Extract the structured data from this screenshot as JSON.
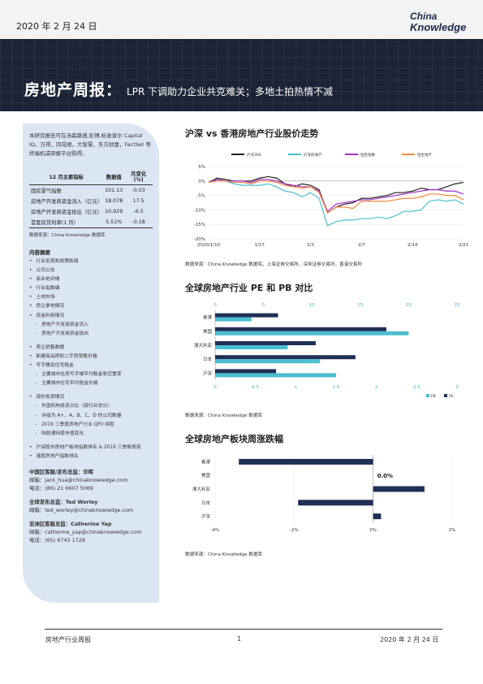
{
  "header": {
    "date": "2020 年 2 月 24 日",
    "logo_line1": "China",
    "logo_line2": "Knowledge",
    "title": "房地产周报：",
    "subtitle": "LPR 下调助力企业共克难关；多地土拍热情不减"
  },
  "sidebar": {
    "intro": "本研究报告可在汤森路透,彭博,标准普尔 Capital IQ，万得，同花顺，大智慧，东方财富，FactSet 等终端机或研报平台购得。",
    "table": {
      "headers": [
        "12 月主要指标",
        "数据值",
        "月变化(%)"
      ],
      "rows": [
        [
          "国房景气指数",
          "101.13",
          "-0.03"
        ],
        [
          "房地产开发商资金流入（亿元）",
          "18,078",
          "17.5"
        ],
        [
          "房地产开发商资金投出（亿元）",
          "10,929",
          "-6.5"
        ],
        [
          "首套房贷利率(1 月）",
          "5.51%",
          "-0.18"
        ]
      ]
    },
    "table_source": "数据来源：China Knowledge 数据库",
    "toc_title": "内容摘要",
    "toc": [
      {
        "t": "b",
        "x": "行业宏观和政策新闻"
      },
      {
        "t": "b",
        "x": "公司公告"
      },
      {
        "t": "b",
        "x": "商业地评情"
      },
      {
        "t": "b",
        "x": "行业指数编"
      },
      {
        "t": "b",
        "x": "土地市场"
      },
      {
        "t": "b",
        "x": "房企拿地情况"
      },
      {
        "t": "b",
        "x": "资金利用情况"
      },
      {
        "t": "s",
        "x": "房地产开发商资金流入"
      },
      {
        "t": "s",
        "x": "房地产开发商资金投出"
      },
      {
        "t": "g",
        "x": ""
      },
      {
        "t": "b",
        "x": "房企销售数据"
      },
      {
        "t": "b",
        "x": "新建商品房和二手房销售价格"
      },
      {
        "t": "b",
        "x": "写字楼及住宅租金"
      },
      {
        "t": "s",
        "x": "主要城市住房写字楼平均租金和空置率"
      },
      {
        "t": "s",
        "x": "主要城市住宅平均租金价格"
      },
      {
        "t": "g",
        "x": ""
      },
      {
        "t": "b",
        "x": "海外投资情况"
      },
      {
        "t": "s",
        "x": "外国机构投资占比（按行业划分）"
      },
      {
        "t": "s",
        "x": "评级为 A+、A、B、C、D 的公司数量"
      },
      {
        "t": "s",
        "x": "2019 三季度房地产行业 QFII 持股"
      },
      {
        "t": "s",
        "x": "陆股通持股市值变化"
      },
      {
        "t": "g",
        "x": ""
      },
      {
        "t": "b",
        "x": "沪深股市房地产板块指数排名 & 2019 三季报表现"
      },
      {
        "t": "b",
        "x": "港股房地产指数排名"
      }
    ],
    "contacts": [
      {
        "head": "中国区客服/发布总监：华晖",
        "email": "邮箱：jack_hua@chinaknowledge.com",
        "phone": "电话：(86) 21 6607 5069"
      },
      {
        "head": "全球发布总监：Ted Worley",
        "email": "邮箱：ted_worley@chinaknowledge.com",
        "phone": ""
      },
      {
        "head": "亚洲区客服总监：Catherine Yap",
        "email": "邮箱：catherine_yap@chinaknowledge.com",
        "phone": "电话：(65) 6743 1728"
      }
    ]
  },
  "sections": {
    "s1": "沪深 vs 香港房地产行业股价走势",
    "s1_src": "数据来源：China Knowledge 数据库，上海证券交易所，深圳证券交易所，香港交易所",
    "s2": "全球房地产行业 PE 和 PB 对比",
    "s2_src": "数据来源：China Knowledge 数据库",
    "s3": "全球房地产板块周涨跌幅",
    "s3_src": "数据来源：China Knowledge 数据库"
  },
  "footer": {
    "left": "房地产行业周报",
    "page": "1",
    "right": "2020 年 2 月 24 日"
  },
  "chart_data": [
    {
      "type": "line",
      "title": "沪深 vs 香港房地产行业股价走势",
      "x_ticks": [
        "2020/1/10",
        "1/17",
        "2/3",
        "2/7",
        "2/14",
        "2/21"
      ],
      "ylim": [
        -20,
        5
      ],
      "y_ticks": [
        "5%",
        "0%",
        "-5%",
        "-10%",
        "-15%",
        "-20%"
      ],
      "legend_position": "top",
      "series": [
        {
          "name": "沪深300",
          "color": "#222222",
          "values": [
            -0.5,
            1,
            0.5,
            0,
            0,
            0,
            1,
            1.5,
            1,
            -1,
            -2,
            -1,
            -1.5,
            -3,
            -11,
            -9,
            -8,
            -7.5,
            -6,
            -6,
            -5.5,
            -5,
            -4,
            -4,
            -3.5,
            -2.5,
            -3,
            -3,
            -2,
            -1,
            -0.5
          ]
        },
        {
          "name": "沪深房地产",
          "color": "#4bbfcf",
          "values": [
            -0.5,
            0.5,
            0,
            -1,
            -1.5,
            -1.5,
            -1.5,
            -1,
            -2,
            -3.5,
            -4,
            -5.5,
            -4,
            -6,
            -15.5,
            -14,
            -13.5,
            -13.5,
            -13,
            -13,
            -12.5,
            -13,
            -12,
            -10.5,
            -10.5,
            -10,
            -7,
            -6.5,
            -7,
            -6.5,
            -8
          ]
        },
        {
          "name": "恒生指数",
          "color": "#a330c8",
          "values": [
            -0.5,
            0.5,
            0,
            0,
            0,
            -0.5,
            0.5,
            0.5,
            0,
            -1,
            -1.5,
            -2,
            -2,
            -3.5,
            -10.5,
            -8,
            -7.5,
            -7,
            -6.5,
            -6.5,
            -6,
            -5.5,
            -5,
            -4.5,
            -4,
            -3.5,
            -3,
            -3,
            -3.5,
            -3.5,
            -4.5
          ]
        },
        {
          "name": "恒生地产",
          "color": "#ef8a3c",
          "values": [
            -0.5,
            0,
            0,
            -0.5,
            -0.5,
            -1,
            0,
            0,
            -0.5,
            -1.5,
            -2,
            -2.5,
            -2,
            -4,
            -11,
            -9,
            -9,
            -9.5,
            -7,
            -7,
            -7,
            -7,
            -6.5,
            -6,
            -6,
            -5.5,
            -4.5,
            -4.5,
            -5,
            -5,
            -6.5
          ]
        }
      ]
    },
    {
      "type": "bar",
      "title": "全球房地产行业 PE 和 PB 对比",
      "categories": [
        "香港",
        "美国",
        "澳大利亚",
        "日本",
        "沪深"
      ],
      "series": [
        {
          "name": "PB",
          "color": "#4bbfcf",
          "values": [
            0.45,
            2.4,
            0.9,
            1.3,
            1.5
          ]
        },
        {
          "name": "PE",
          "color": "#1f2f55",
          "values": [
            6.5,
            17.7,
            10.4,
            14.5,
            6.3
          ]
        }
      ],
      "pb_axis": {
        "min": 0,
        "max": 3,
        "ticks": [
          "0",
          "0.5",
          "1",
          "1.5",
          "2",
          "2.5",
          "3"
        ]
      },
      "pe_axis": {
        "min": 0,
        "max": 25,
        "ticks": [
          "0",
          "5",
          "10",
          "15",
          "20",
          "25"
        ]
      },
      "legend": [
        "PB",
        "PE"
      ]
    },
    {
      "type": "bar",
      "title": "全球房地产板块周涨跌幅",
      "categories": [
        "香港",
        "美国",
        "澳大利亚",
        "日本",
        "沪深"
      ],
      "values": [
        -3.4,
        0.0,
        1.3,
        -1.9,
        0.2
      ],
      "color": "#1f2f55",
      "annotation": "0.0%",
      "xlim": [
        -4,
        2
      ],
      "x_ticks": [
        "-4%",
        "-2%",
        "0%",
        "2%"
      ]
    }
  ]
}
